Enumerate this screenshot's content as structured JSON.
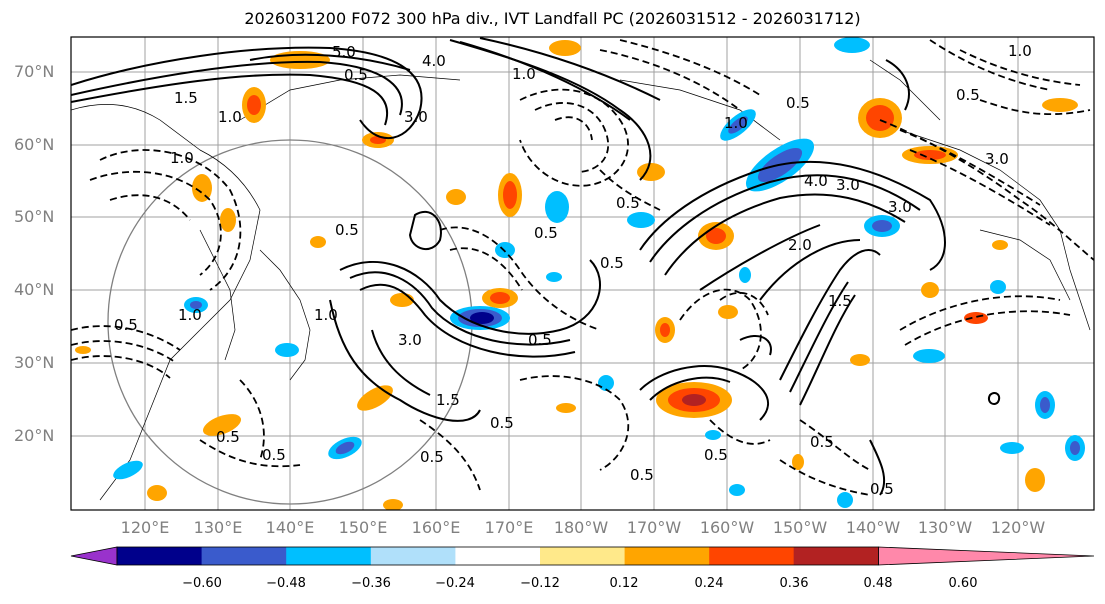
{
  "title": "2026031200 F072 300 hPa div., IVT Landfall PC (2026031512 - 2026031712)",
  "lat_labels": [
    "70°N",
    "60°N",
    "50°N",
    "40°N",
    "30°N",
    "20°N"
  ],
  "lon_labels": [
    "120°E",
    "130°E",
    "140°E",
    "150°E",
    "160°E",
    "170°E",
    "180°W",
    "170°W",
    "160°W",
    "150°W",
    "140°W",
    "130°W",
    "120°W"
  ],
  "contour_labels": [
    "5.0",
    "0.5",
    "4.0",
    "1.0",
    "1.5",
    "1.0",
    "3.0",
    "1.0",
    "0.5",
    "3.0",
    "0.5",
    "0.5",
    "1.0",
    "3.0",
    "4.0",
    "3.0",
    "1.0",
    "0.5",
    "0.5",
    "2.0",
    "1.5",
    "0.5",
    "0.5",
    "3.0",
    "1.0",
    "0.5",
    "1.0",
    "0.5",
    "0.5",
    "0.5",
    "1.5",
    "0.5",
    "0.5",
    "0.5",
    "0.5",
    "0.5"
  ],
  "colorbar": {
    "ticks": [
      "−0.60",
      "−0.48",
      "−0.36",
      "−0.24",
      "−0.12",
      "0.12",
      "0.24",
      "0.36",
      "0.48",
      "0.60"
    ],
    "colors": [
      "#9932cc",
      "#00008b",
      "#3a5bcc",
      "#00bfff",
      "#b0e0fa",
      "#ffffff",
      "#ffe98a",
      "#ffa500",
      "#ff4500",
      "#b22222",
      "#ff88aa"
    ]
  },
  "legend_colors": {
    "neg_strong": "#00008b",
    "neg_mid": "#3a5bcc",
    "neg_light": "#00bfff",
    "neg_pale": "#b0e0fa",
    "pos_pale": "#ffe98a",
    "pos_light": "#ffa500",
    "pos_mid": "#ff4500",
    "pos_strong": "#b22222"
  }
}
